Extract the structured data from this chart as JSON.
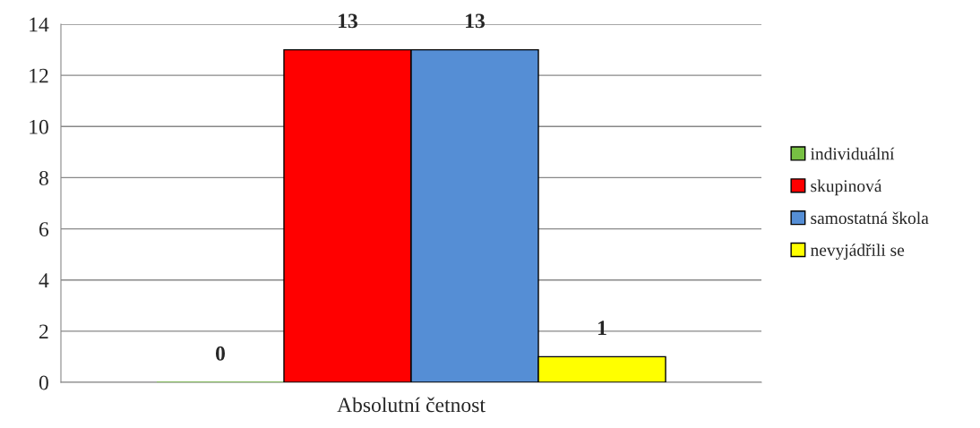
{
  "chart_data": {
    "type": "bar",
    "categories": [
      "Absolutní četnost"
    ],
    "series": [
      {
        "name": "individuální",
        "color": "#77c043",
        "values": [
          0
        ]
      },
      {
        "name": "skupinová",
        "color": "#ff0000",
        "values": [
          13
        ]
      },
      {
        "name": "samostatná škola",
        "color": "#558ed5",
        "values": [
          13
        ]
      },
      {
        "name": "nevyjádřili se",
        "color": "#ffff00",
        "values": [
          1
        ]
      }
    ],
    "ylim": [
      0,
      14
    ],
    "yticks": [
      0,
      2,
      4,
      6,
      8,
      10,
      12,
      14
    ],
    "grid": "y",
    "legend": "right",
    "data_labels": true
  }
}
